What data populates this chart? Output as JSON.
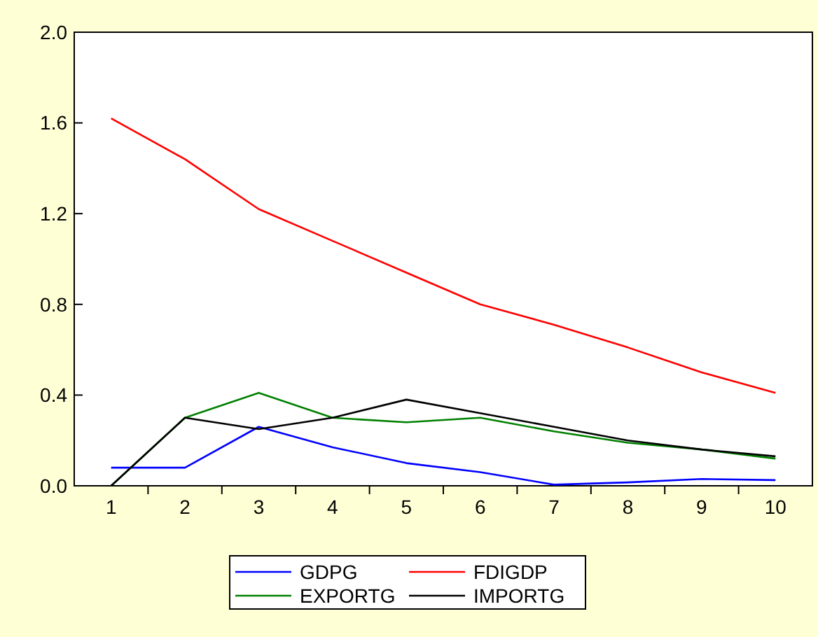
{
  "chart_data": {
    "type": "line",
    "categories": [
      "1",
      "2",
      "3",
      "4",
      "5",
      "6",
      "7",
      "8",
      "9",
      "10"
    ],
    "series": [
      {
        "name": "GDPG",
        "color": "#0000ff",
        "values": [
          0.08,
          0.08,
          0.26,
          0.17,
          0.1,
          0.06,
          0.005,
          0.015,
          0.03,
          0.025
        ]
      },
      {
        "name": "FDIGDP",
        "color": "#ff0000",
        "values": [
          1.62,
          1.44,
          1.22,
          1.08,
          0.94,
          0.8,
          0.71,
          0.61,
          0.5,
          0.41
        ]
      },
      {
        "name": "EXPORTG",
        "color": "#008000",
        "values": [
          0,
          0.3,
          0.41,
          0.3,
          0.28,
          0.3,
          0.24,
          0.19,
          0.16,
          0.12
        ]
      },
      {
        "name": "IMPORTG",
        "color": "#000000",
        "values": [
          0,
          0.3,
          0.25,
          0.3,
          0.38,
          0.32,
          0.26,
          0.2,
          0.16,
          0.13
        ]
      }
    ],
    "ylim": [
      0,
      2
    ],
    "yticks": [
      {
        "value": 0,
        "label": "0.0"
      },
      {
        "value": 0.4,
        "label": "0.4"
      },
      {
        "value": 0.8,
        "label": "0.8"
      },
      {
        "value": 1.2,
        "label": "1.2"
      },
      {
        "value": 1.6,
        "label": "1.6"
      },
      {
        "value": 2,
        "label": "2.0"
      }
    ],
    "grid": false,
    "legend": "bottom",
    "marker": "none",
    "line_style": "solid"
  }
}
